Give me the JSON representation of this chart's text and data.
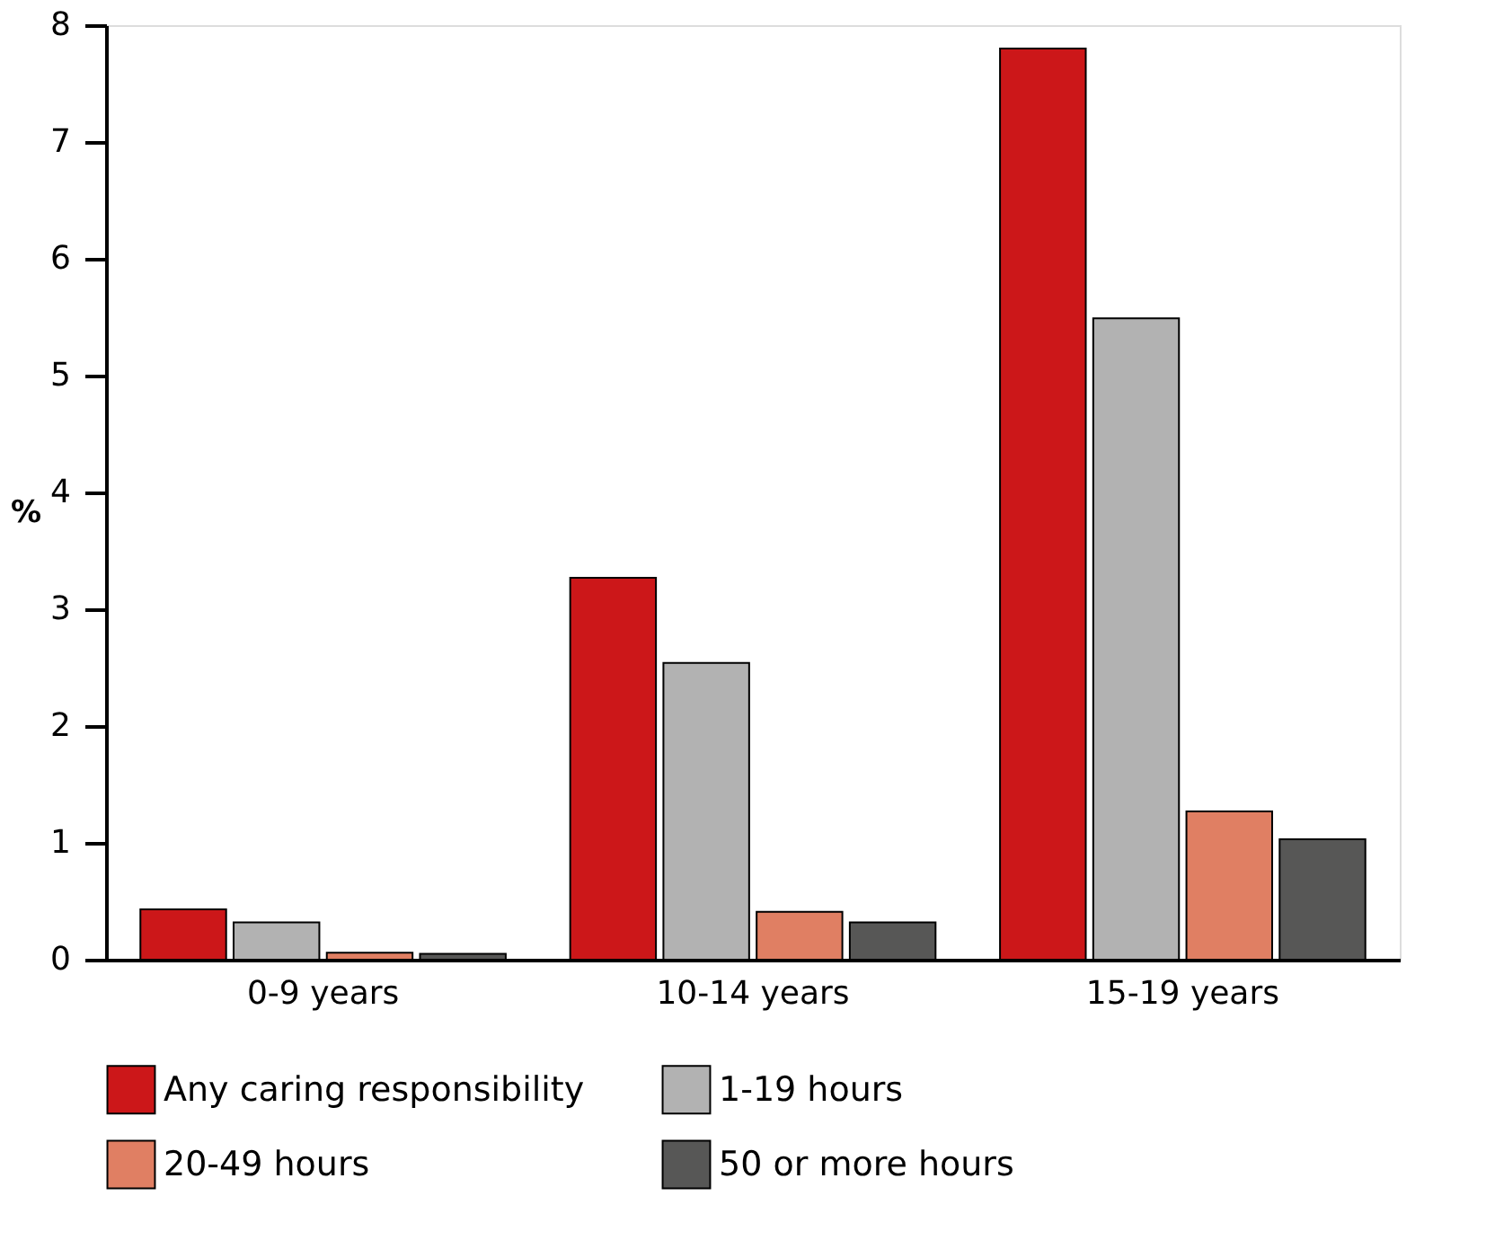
{
  "chart_data": {
    "type": "bar",
    "ylabel": "%",
    "categories": [
      "0-9 years",
      "10-14 years",
      "15-19 years"
    ],
    "series": [
      {
        "name": "Any caring responsibility",
        "color": "#cc1719",
        "values": [
          0.43,
          3.27,
          7.8
        ]
      },
      {
        "name": "1-19 hours",
        "color": "#b2b2b2",
        "values": [
          0.32,
          2.54,
          5.49
        ]
      },
      {
        "name": "20-49 hours",
        "color": "#e07f63",
        "values": [
          0.06,
          0.41,
          1.27
        ]
      },
      {
        "name": "50 or more hours",
        "color": "#575756",
        "values": [
          0.05,
          0.32,
          1.03
        ]
      }
    ],
    "ylim": [
      0,
      8
    ],
    "yticks": [
      0,
      1,
      2,
      3,
      4,
      5,
      6,
      7,
      8
    ],
    "grid": false,
    "legend": "bottom"
  }
}
